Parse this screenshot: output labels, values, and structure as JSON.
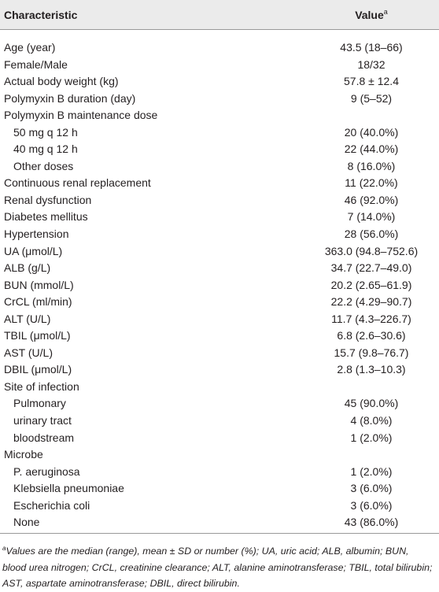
{
  "table": {
    "header": {
      "label": "Characteristic",
      "value": "Value",
      "value_marker": "a"
    },
    "rows": [
      {
        "label": "Age (year)",
        "value": "43.5 (18–66)"
      },
      {
        "label": "Female/Male",
        "value": "18/32"
      },
      {
        "label": "Actual body weight (kg)",
        "value": "57.8 ± 12.4"
      },
      {
        "label": "Polymyxin B duration (day)",
        "value": "9 (5–52)"
      },
      {
        "label": "Polymyxin B maintenance dose",
        "subrows": [
          {
            "label": "50 mg q 12 h",
            "value": "20 (40.0%)"
          },
          {
            "label": "40 mg q 12 h",
            "value": "22 (44.0%)"
          },
          {
            "label": "Other doses",
            "value": "8 (16.0%)"
          }
        ]
      },
      {
        "label": "Continuous renal replacement",
        "value": "11 (22.0%)"
      },
      {
        "label": "Renal dysfunction",
        "value": "46 (92.0%)"
      },
      {
        "label": "Diabetes mellitus",
        "value": "7 (14.0%)"
      },
      {
        "label": "Hypertension",
        "value": "28 (56.0%)"
      },
      {
        "label": "UA (μmol/L)",
        "value": "363.0 (94.8–752.6)"
      },
      {
        "label": "ALB (g/L)",
        "value": "34.7 (22.7–49.0)"
      },
      {
        "label": "BUN (mmol/L)",
        "value": "20.2 (2.65–61.9)"
      },
      {
        "label": "CrCL (ml/min)",
        "value": "22.2 (4.29–90.7)"
      },
      {
        "label": "ALT (U/L)",
        "value": "11.7 (4.3–226.7)"
      },
      {
        "label": "TBIL (μmol/L)",
        "value": "6.8 (2.6–30.6)"
      },
      {
        "label": "AST (U/L)",
        "value": "15.7 (9.8–76.7)"
      },
      {
        "label": "DBIL (μmol/L)",
        "value": "2.8 (1.3–10.3)"
      },
      {
        "label": "Site of infection",
        "subrows": [
          {
            "label": "Pulmonary",
            "value": "45 (90.0%)"
          },
          {
            "label": "urinary tract",
            "value": "4 (8.0%)"
          },
          {
            "label": "bloodstream",
            "value": "1 (2.0%)"
          }
        ]
      },
      {
        "label": "Microbe",
        "subrows": [
          {
            "label": "P. aeruginosa",
            "value": "1 (2.0%)"
          },
          {
            "label": "Klebsiella pneumoniae",
            "value": "3 (6.0%)"
          },
          {
            "label": "Escherichia coli",
            "value": "3 (6.0%)"
          },
          {
            "label": "None",
            "value": "43 (86.0%)"
          }
        ]
      }
    ],
    "footnote": {
      "marker": "a",
      "text": "Values are the median (range), mean ± SD or number (%); UA, uric acid; ALB, albumin; BUN, blood urea nitrogen; CrCL, creatinine clearance; ALT, alanine aminotransferase; TBIL, total bilirubin; AST, aspartate aminotransferase; DBIL, direct bilirubin."
    }
  }
}
